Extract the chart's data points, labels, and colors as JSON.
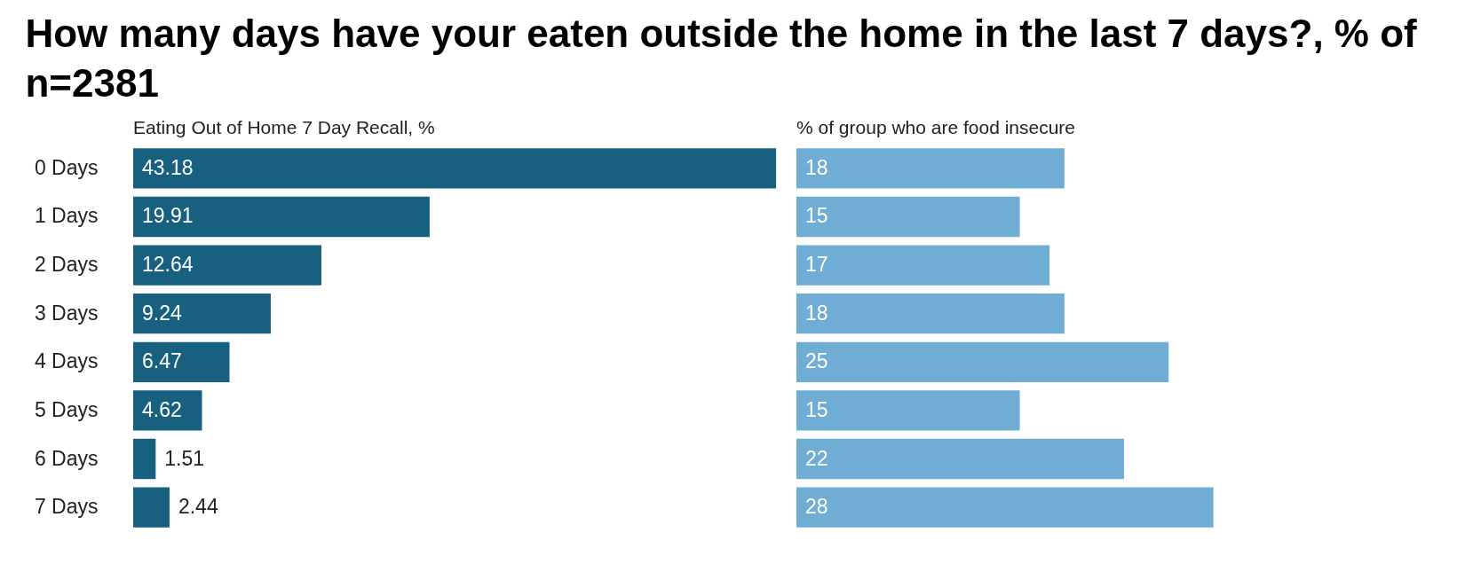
{
  "chart_data": [
    {
      "type": "bar",
      "orientation": "horizontal",
      "title": "How many days have your eaten outside the home in the last 7 days?, % of n=2381",
      "subtitle": "Eating Out of Home 7 Day Recall, %",
      "categories": [
        "0 Days",
        "1 Days",
        "2 Days",
        "3 Days",
        "4 Days",
        "5 Days",
        "6 Days",
        "7 Days"
      ],
      "values": [
        43.18,
        19.91,
        12.64,
        9.24,
        6.47,
        4.62,
        1.51,
        2.44
      ],
      "color": "#17607f",
      "data_labels": true
    },
    {
      "type": "bar",
      "orientation": "horizontal",
      "title": "% of group who are food insecure",
      "categories": [
        null,
        null,
        null,
        null,
        null,
        null,
        null,
        null
      ],
      "values": [
        18,
        15,
        17,
        18,
        25,
        15,
        22,
        28
      ],
      "color": "#6fadd4",
      "data_labels": true,
      "tick_labels": false
    }
  ]
}
